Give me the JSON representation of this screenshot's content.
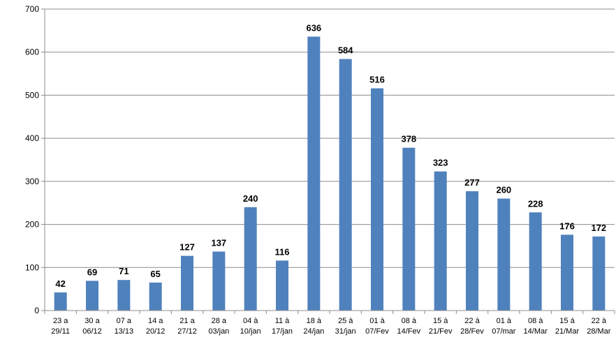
{
  "chart_data": {
    "type": "bar",
    "categories": [
      [
        "23 a",
        "29/11"
      ],
      [
        "30 a",
        "06/12"
      ],
      [
        "07 a",
        "13/13"
      ],
      [
        "14 a",
        "20/12"
      ],
      [
        "21 a",
        "27/12"
      ],
      [
        "28 a",
        "03/jan"
      ],
      [
        "04 à",
        "10/jan"
      ],
      [
        "11 à",
        "17/jan"
      ],
      [
        "18 à",
        "24/jan"
      ],
      [
        "25 à",
        "31/jan"
      ],
      [
        "01 à",
        "07/Fev"
      ],
      [
        "08 à",
        "14/Fev"
      ],
      [
        "15 à",
        "21/Fev"
      ],
      [
        "22 à",
        "28/Fev"
      ],
      [
        "01 à",
        "07/mar"
      ],
      [
        "08 à",
        "14/Mar"
      ],
      [
        "15 á",
        "21/Mar"
      ],
      [
        "22 à",
        "28/Mar"
      ]
    ],
    "values": [
      42,
      69,
      71,
      65,
      127,
      137,
      240,
      116,
      636,
      584,
      516,
      378,
      323,
      277,
      260,
      228,
      176,
      172
    ],
    "yticks": [
      "0",
      "100",
      "200",
      "300",
      "400",
      "500",
      "600",
      "700"
    ],
    "ylim": [
      0,
      700
    ],
    "title": "",
    "xlabel": "",
    "ylabel": "",
    "grid": true,
    "bar_color": "#4f81bd",
    "grid_color": "#8c8c8c",
    "data_labels": true
  }
}
